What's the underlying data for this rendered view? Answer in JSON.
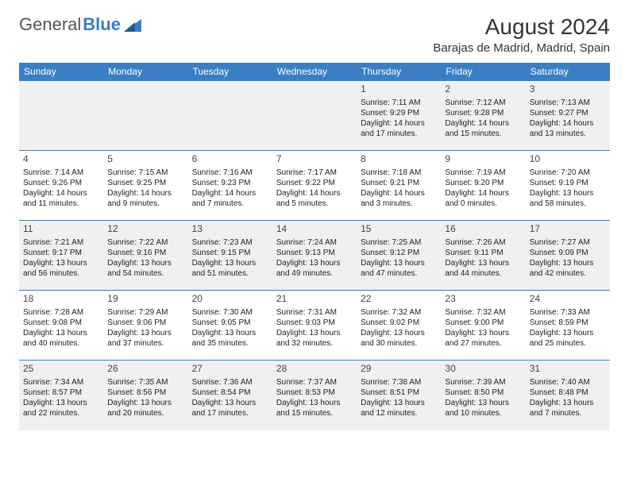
{
  "logo": {
    "part1": "General",
    "part2": "Blue"
  },
  "title": "August 2024",
  "location": "Barajas de Madrid, Madrid, Spain",
  "colors": {
    "header_bg": "#3a7fc4",
    "header_text": "#ffffff",
    "row_alt_bg": "#f0f0f0",
    "text": "#222222",
    "border": "#3a7fc4"
  },
  "day_headers": [
    "Sunday",
    "Monday",
    "Tuesday",
    "Wednesday",
    "Thursday",
    "Friday",
    "Saturday"
  ],
  "weeks": [
    [
      null,
      null,
      null,
      null,
      {
        "n": "1",
        "sr": "Sunrise: 7:11 AM",
        "ss": "Sunset: 9:29 PM",
        "dl": "Daylight: 14 hours and 17 minutes."
      },
      {
        "n": "2",
        "sr": "Sunrise: 7:12 AM",
        "ss": "Sunset: 9:28 PM",
        "dl": "Daylight: 14 hours and 15 minutes."
      },
      {
        "n": "3",
        "sr": "Sunrise: 7:13 AM",
        "ss": "Sunset: 9:27 PM",
        "dl": "Daylight: 14 hours and 13 minutes."
      }
    ],
    [
      {
        "n": "4",
        "sr": "Sunrise: 7:14 AM",
        "ss": "Sunset: 9:26 PM",
        "dl": "Daylight: 14 hours and 11 minutes."
      },
      {
        "n": "5",
        "sr": "Sunrise: 7:15 AM",
        "ss": "Sunset: 9:25 PM",
        "dl": "Daylight: 14 hours and 9 minutes."
      },
      {
        "n": "6",
        "sr": "Sunrise: 7:16 AM",
        "ss": "Sunset: 9:23 PM",
        "dl": "Daylight: 14 hours and 7 minutes."
      },
      {
        "n": "7",
        "sr": "Sunrise: 7:17 AM",
        "ss": "Sunset: 9:22 PM",
        "dl": "Daylight: 14 hours and 5 minutes."
      },
      {
        "n": "8",
        "sr": "Sunrise: 7:18 AM",
        "ss": "Sunset: 9:21 PM",
        "dl": "Daylight: 14 hours and 3 minutes."
      },
      {
        "n": "9",
        "sr": "Sunrise: 7:19 AM",
        "ss": "Sunset: 9:20 PM",
        "dl": "Daylight: 14 hours and 0 minutes."
      },
      {
        "n": "10",
        "sr": "Sunrise: 7:20 AM",
        "ss": "Sunset: 9:19 PM",
        "dl": "Daylight: 13 hours and 58 minutes."
      }
    ],
    [
      {
        "n": "11",
        "sr": "Sunrise: 7:21 AM",
        "ss": "Sunset: 9:17 PM",
        "dl": "Daylight: 13 hours and 56 minutes."
      },
      {
        "n": "12",
        "sr": "Sunrise: 7:22 AM",
        "ss": "Sunset: 9:16 PM",
        "dl": "Daylight: 13 hours and 54 minutes."
      },
      {
        "n": "13",
        "sr": "Sunrise: 7:23 AM",
        "ss": "Sunset: 9:15 PM",
        "dl": "Daylight: 13 hours and 51 minutes."
      },
      {
        "n": "14",
        "sr": "Sunrise: 7:24 AM",
        "ss": "Sunset: 9:13 PM",
        "dl": "Daylight: 13 hours and 49 minutes."
      },
      {
        "n": "15",
        "sr": "Sunrise: 7:25 AM",
        "ss": "Sunset: 9:12 PM",
        "dl": "Daylight: 13 hours and 47 minutes."
      },
      {
        "n": "16",
        "sr": "Sunrise: 7:26 AM",
        "ss": "Sunset: 9:11 PM",
        "dl": "Daylight: 13 hours and 44 minutes."
      },
      {
        "n": "17",
        "sr": "Sunrise: 7:27 AM",
        "ss": "Sunset: 9:09 PM",
        "dl": "Daylight: 13 hours and 42 minutes."
      }
    ],
    [
      {
        "n": "18",
        "sr": "Sunrise: 7:28 AM",
        "ss": "Sunset: 9:08 PM",
        "dl": "Daylight: 13 hours and 40 minutes."
      },
      {
        "n": "19",
        "sr": "Sunrise: 7:29 AM",
        "ss": "Sunset: 9:06 PM",
        "dl": "Daylight: 13 hours and 37 minutes."
      },
      {
        "n": "20",
        "sr": "Sunrise: 7:30 AM",
        "ss": "Sunset: 9:05 PM",
        "dl": "Daylight: 13 hours and 35 minutes."
      },
      {
        "n": "21",
        "sr": "Sunrise: 7:31 AM",
        "ss": "Sunset: 9:03 PM",
        "dl": "Daylight: 13 hours and 32 minutes."
      },
      {
        "n": "22",
        "sr": "Sunrise: 7:32 AM",
        "ss": "Sunset: 9:02 PM",
        "dl": "Daylight: 13 hours and 30 minutes."
      },
      {
        "n": "23",
        "sr": "Sunrise: 7:32 AM",
        "ss": "Sunset: 9:00 PM",
        "dl": "Daylight: 13 hours and 27 minutes."
      },
      {
        "n": "24",
        "sr": "Sunrise: 7:33 AM",
        "ss": "Sunset: 8:59 PM",
        "dl": "Daylight: 13 hours and 25 minutes."
      }
    ],
    [
      {
        "n": "25",
        "sr": "Sunrise: 7:34 AM",
        "ss": "Sunset: 8:57 PM",
        "dl": "Daylight: 13 hours and 22 minutes."
      },
      {
        "n": "26",
        "sr": "Sunrise: 7:35 AM",
        "ss": "Sunset: 8:56 PM",
        "dl": "Daylight: 13 hours and 20 minutes."
      },
      {
        "n": "27",
        "sr": "Sunrise: 7:36 AM",
        "ss": "Sunset: 8:54 PM",
        "dl": "Daylight: 13 hours and 17 minutes."
      },
      {
        "n": "28",
        "sr": "Sunrise: 7:37 AM",
        "ss": "Sunset: 8:53 PM",
        "dl": "Daylight: 13 hours and 15 minutes."
      },
      {
        "n": "29",
        "sr": "Sunrise: 7:38 AM",
        "ss": "Sunset: 8:51 PM",
        "dl": "Daylight: 13 hours and 12 minutes."
      },
      {
        "n": "30",
        "sr": "Sunrise: 7:39 AM",
        "ss": "Sunset: 8:50 PM",
        "dl": "Daylight: 13 hours and 10 minutes."
      },
      {
        "n": "31",
        "sr": "Sunrise: 7:40 AM",
        "ss": "Sunset: 8:48 PM",
        "dl": "Daylight: 13 hours and 7 minutes."
      }
    ]
  ]
}
